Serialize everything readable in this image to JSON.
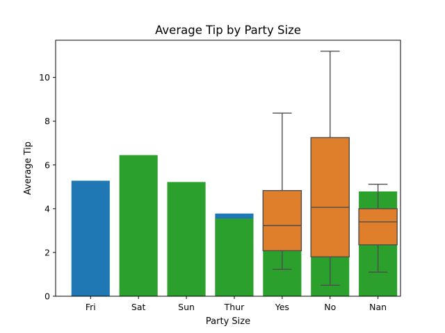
{
  "chart_data": {
    "type": "bar",
    "title": "Average Tip by Party Size",
    "xlabel": "Party Size",
    "ylabel": "Average Tip",
    "ylim": [
      0,
      11.7
    ],
    "yticks": [
      0,
      2,
      4,
      6,
      8,
      10
    ],
    "grid": false,
    "categories": [
      "Fri",
      "Sat",
      "Sun",
      "Thur",
      "Yes",
      "No",
      "Nan"
    ],
    "colors": {
      "bar_primary": "#1f77b4",
      "bar_secondary": "#2ca02c",
      "box_fill": "#e07f2b",
      "box_line": "#4d4d4d"
    },
    "series": [
      {
        "values": [
          5.28,
          null,
          null,
          3.78,
          null,
          null,
          null
        ]
      },
      {
        "values": [
          null,
          6.45,
          5.22,
          3.55,
          4.83,
          7.25,
          4.79
        ]
      }
    ],
    "boxes": [
      {
        "category": "Yes",
        "whisker_low": 1.23,
        "q1": 2.08,
        "median": 3.23,
        "q3": 4.83,
        "whisker_high": 8.37
      },
      {
        "category": "No",
        "whisker_low": 0.5,
        "q1": 1.8,
        "median": 4.07,
        "q3": 7.25,
        "whisker_high": 11.2
      },
      {
        "category": "Nan",
        "whisker_low": 1.1,
        "q1": 2.35,
        "median": 3.4,
        "q3": 4.0,
        "whisker_high": 5.12
      }
    ]
  }
}
